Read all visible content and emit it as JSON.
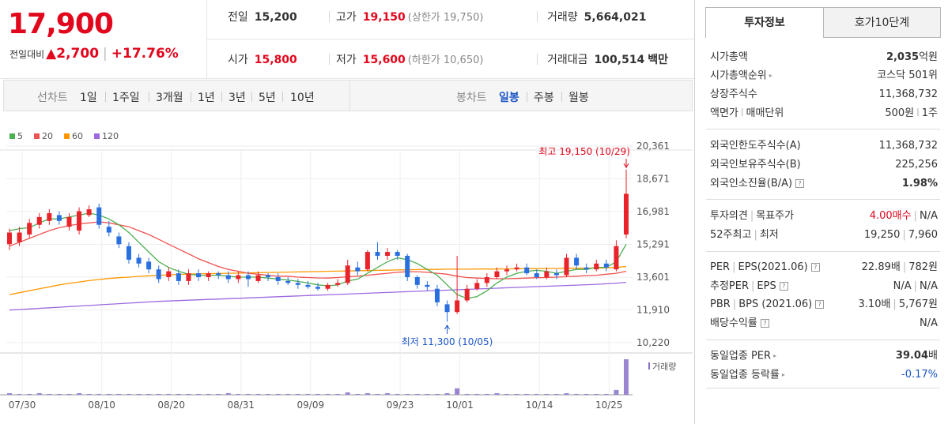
{
  "price": {
    "current": "17,900",
    "change_label": "전일대비",
    "change_arrow": "▲",
    "change_value": "2,700",
    "change_pct": "+17.76%"
  },
  "stats": {
    "prev_label": "전일",
    "prev_value": "15,200",
    "high_label": "고가",
    "high_value": "19,150",
    "high_sub": "(상한가 19,750)",
    "volume_label": "거래량",
    "volume_value": "5,664,021",
    "open_label": "시가",
    "open_value": "15,800",
    "low_label": "저가",
    "low_value": "15,600",
    "low_sub": "(하한가 10,650)",
    "amount_label": "거래대금",
    "amount_value": "100,514",
    "amount_unit": "백만"
  },
  "chart_bar": {
    "line_label": "선차트",
    "periods": [
      "1일",
      "1주일",
      "3개월",
      "1년",
      "3년",
      "5년",
      "10년"
    ],
    "candle_label": "봉차트",
    "candle_types": [
      "일봉",
      "주봉",
      "월봉"
    ],
    "active_candle": "일봉"
  },
  "chart_data": {
    "type": "candlestick",
    "ma_legend": [
      {
        "name": "5",
        "color": "#4caf50"
      },
      {
        "name": "20",
        "color": "#ef5350"
      },
      {
        "name": "60",
        "color": "#ff9800"
      },
      {
        "name": "120",
        "color": "#9c6ade"
      }
    ],
    "y_ticks": [
      "20,361",
      "18,671",
      "16,981",
      "15,291",
      "13,601",
      "11,910",
      "10,220"
    ],
    "y_range": [
      10220,
      20361
    ],
    "x_ticks": [
      "07/30",
      "08/10",
      "08/20",
      "08/31",
      "09/09",
      "09/23",
      "10/01",
      "10/14",
      "10/25"
    ],
    "high_annotation": "최고 19,150 (10/29)",
    "low_annotation": "최저 11,300 (10/05)",
    "volume_label": "거래량",
    "candles": [
      {
        "o": 15300,
        "c": 15900,
        "h": 16100,
        "l": 15000
      },
      {
        "o": 15400,
        "c": 15900,
        "h": 16200,
        "l": 15200
      },
      {
        "o": 15800,
        "c": 16400,
        "h": 16600,
        "l": 15600
      },
      {
        "o": 16300,
        "c": 16700,
        "h": 16900,
        "l": 16100
      },
      {
        "o": 16500,
        "c": 16900,
        "h": 17100,
        "l": 16300
      },
      {
        "o": 16800,
        "c": 16500,
        "h": 17000,
        "l": 16300
      },
      {
        "o": 16200,
        "c": 16700,
        "h": 16900,
        "l": 16000
      },
      {
        "o": 16000,
        "c": 17000,
        "h": 17200,
        "l": 15800
      },
      {
        "o": 16800,
        "c": 17100,
        "h": 17300,
        "l": 16700
      },
      {
        "o": 17200,
        "c": 16300,
        "h": 17400,
        "l": 16100
      },
      {
        "o": 16200,
        "c": 15900,
        "h": 16500,
        "l": 15700
      },
      {
        "o": 15700,
        "c": 15300,
        "h": 15900,
        "l": 15100
      },
      {
        "o": 15200,
        "c": 14500,
        "h": 15400,
        "l": 14300
      },
      {
        "o": 14600,
        "c": 14300,
        "h": 14800,
        "l": 14100
      },
      {
        "o": 14400,
        "c": 14000,
        "h": 14600,
        "l": 13800
      },
      {
        "o": 14000,
        "c": 13500,
        "h": 14200,
        "l": 13300
      },
      {
        "o": 13600,
        "c": 13900,
        "h": 14100,
        "l": 13400
      },
      {
        "o": 13800,
        "c": 13400,
        "h": 14000,
        "l": 13200
      },
      {
        "o": 13400,
        "c": 13800,
        "h": 14000,
        "l": 13200
      },
      {
        "o": 13800,
        "c": 13600,
        "h": 14000,
        "l": 13400
      },
      {
        "o": 13600,
        "c": 13800,
        "h": 13900,
        "l": 13400
      },
      {
        "o": 13800,
        "c": 13700,
        "h": 13900,
        "l": 13500
      },
      {
        "o": 13700,
        "c": 13500,
        "h": 13900,
        "l": 13300
      },
      {
        "o": 13500,
        "c": 13700,
        "h": 13900,
        "l": 13300
      },
      {
        "o": 13700,
        "c": 13500,
        "h": 13900,
        "l": 13100
      },
      {
        "o": 13400,
        "c": 13700,
        "h": 13900,
        "l": 13300
      },
      {
        "o": 13700,
        "c": 13600,
        "h": 13800,
        "l": 13400
      },
      {
        "o": 13600,
        "c": 13400,
        "h": 13800,
        "l": 13200
      },
      {
        "o": 13400,
        "c": 13300,
        "h": 13600,
        "l": 13200
      },
      {
        "o": 13300,
        "c": 13200,
        "h": 13500,
        "l": 13000
      },
      {
        "o": 13200,
        "c": 13100,
        "h": 13400,
        "l": 13000
      },
      {
        "o": 13100,
        "c": 13000,
        "h": 13300,
        "l": 12900
      },
      {
        "o": 13000,
        "c": 13200,
        "h": 13300,
        "l": 12900
      },
      {
        "o": 13200,
        "c": 13300,
        "h": 13500,
        "l": 13100
      },
      {
        "o": 13300,
        "c": 14200,
        "h": 14500,
        "l": 13200
      },
      {
        "o": 14100,
        "c": 13900,
        "h": 14400,
        "l": 13700
      },
      {
        "o": 14000,
        "c": 14900,
        "h": 15000,
        "l": 13900
      },
      {
        "o": 14900,
        "c": 14700,
        "h": 15400,
        "l": 14500
      },
      {
        "o": 14700,
        "c": 14900,
        "h": 15100,
        "l": 14500
      },
      {
        "o": 14900,
        "c": 14700,
        "h": 15000,
        "l": 14500
      },
      {
        "o": 14700,
        "c": 13600,
        "h": 14800,
        "l": 13400
      },
      {
        "o": 13600,
        "c": 13200,
        "h": 13700,
        "l": 13000
      },
      {
        "o": 13200,
        "c": 13100,
        "h": 13400,
        "l": 12900
      },
      {
        "o": 13000,
        "c": 12300,
        "h": 13200,
        "l": 12100
      },
      {
        "o": 12200,
        "c": 11800,
        "h": 12400,
        "l": 11300
      },
      {
        "o": 11800,
        "c": 12400,
        "h": 14700,
        "l": 11700
      },
      {
        "o": 12400,
        "c": 13000,
        "h": 13200,
        "l": 12300
      },
      {
        "o": 13000,
        "c": 13300,
        "h": 13500,
        "l": 12900
      },
      {
        "o": 13300,
        "c": 13600,
        "h": 13800,
        "l": 13100
      },
      {
        "o": 13600,
        "c": 13900,
        "h": 14100,
        "l": 13500
      },
      {
        "o": 13900,
        "c": 14000,
        "h": 14200,
        "l": 13700
      },
      {
        "o": 14000,
        "c": 14100,
        "h": 14300,
        "l": 13900
      },
      {
        "o": 14100,
        "c": 13800,
        "h": 14300,
        "l": 13700
      },
      {
        "o": 13800,
        "c": 13600,
        "h": 14000,
        "l": 13500
      },
      {
        "o": 13600,
        "c": 13900,
        "h": 14100,
        "l": 13500
      },
      {
        "o": 13800,
        "c": 13700,
        "h": 14000,
        "l": 13500
      },
      {
        "o": 13700,
        "c": 14600,
        "h": 14800,
        "l": 13600
      },
      {
        "o": 14600,
        "c": 14200,
        "h": 14800,
        "l": 14000
      },
      {
        "o": 14100,
        "c": 14000,
        "h": 14300,
        "l": 13800
      },
      {
        "o": 14000,
        "c": 14300,
        "h": 14500,
        "l": 13900
      },
      {
        "o": 14300,
        "c": 14100,
        "h": 14500,
        "l": 13900
      },
      {
        "o": 14000,
        "c": 15200,
        "h": 15500,
        "l": 13900
      },
      {
        "o": 15800,
        "c": 17900,
        "h": 19150,
        "l": 15600
      }
    ],
    "volumes": [
      2,
      1,
      1,
      2,
      1,
      1,
      1,
      2,
      1,
      1,
      1,
      1,
      1,
      1,
      1,
      1,
      1,
      1,
      1,
      1,
      1,
      1,
      2,
      1,
      1,
      1,
      1,
      1,
      1,
      1,
      1,
      1,
      1,
      1,
      3,
      1,
      2,
      1,
      2,
      1,
      1,
      1,
      1,
      1,
      2,
      8,
      1,
      1,
      1,
      2,
      1,
      1,
      1,
      1,
      1,
      1,
      2,
      1,
      1,
      1,
      1,
      6,
      44
    ],
    "ma5": [
      16000,
      16100,
      16150,
      16400,
      16600,
      16600,
      16700,
      16800,
      16900,
      16800,
      16600,
      16300,
      15900,
      15400,
      14900,
      14400,
      14100,
      13900,
      13750,
      13700,
      13700,
      13700,
      13650,
      13600,
      13600,
      13600,
      13550,
      13500,
      13450,
      13380,
      13300,
      13200,
      13150,
      13200,
      13400,
      13500,
      13800,
      14100,
      14400,
      14600,
      14500,
      14300,
      14000,
      13700,
      13200,
      12700,
      12500,
      12600,
      12900,
      13300,
      13600,
      13800,
      13900,
      13950,
      13900,
      13800,
      13900,
      14000,
      14000,
      14100,
      14100,
      14400,
      15300
    ],
    "ma20": [
      15200,
      15400,
      15600,
      15800,
      16000,
      16150,
      16250,
      16350,
      16400,
      16450,
      16400,
      16300,
      16200,
      16000,
      15800,
      15550,
      15300,
      15050,
      14800,
      14550,
      14350,
      14150,
      14000,
      13900,
      13800,
      13750,
      13700,
      13650,
      13650,
      13600,
      13580,
      13560,
      13550,
      13580,
      13620,
      13650,
      13700,
      13750,
      13800,
      13850,
      13880,
      13880,
      13850,
      13800,
      13750,
      13650,
      13580,
      13550,
      13530,
      13520,
      13520,
      13530,
      13550,
      13570,
      13580,
      13600,
      13620,
      13650,
      13680,
      13700,
      13750,
      13800,
      13900
    ],
    "ma60": [
      12700,
      12800,
      12900,
      13000,
      13100,
      13200,
      13280,
      13350,
      13420,
      13480,
      13530,
      13570,
      13600,
      13640,
      13670,
      13700,
      13720,
      13740,
      13760,
      13770,
      13780,
      13790,
      13800,
      13810,
      13820,
      13830,
      13840,
      13850,
      13860,
      13870,
      13880,
      13890,
      13900,
      13910,
      13920,
      13930,
      13940,
      13950,
      13960,
      13970,
      13980,
      13990,
      14000,
      14000,
      14010,
      14010,
      14010,
      14020,
      14020,
      14020,
      14030,
      14030,
      14040,
      14040,
      14050,
      14050,
      14060,
      14060,
      14070,
      14070,
      14080,
      14100,
      14150
    ],
    "ma120": [
      11900,
      11930,
      11960,
      11990,
      12020,
      12050,
      12080,
      12110,
      12140,
      12170,
      12200,
      12230,
      12260,
      12290,
      12320,
      12350,
      12370,
      12390,
      12410,
      12430,
      12450,
      12470,
      12490,
      12510,
      12530,
      12550,
      12570,
      12590,
      12610,
      12630,
      12650,
      12670,
      12690,
      12710,
      12730,
      12750,
      12770,
      12790,
      12810,
      12830,
      12850,
      12870,
      12890,
      12910,
      12930,
      12950,
      12970,
      12990,
      13010,
      13030,
      13050,
      13070,
      13090,
      13110,
      13130,
      13150,
      13170,
      13190,
      13210,
      13230,
      13260,
      13290,
      13330
    ]
  },
  "panel": {
    "tab_info": "투자정보",
    "tab_order": "호가10단계",
    "market_cap_label": "시가총액",
    "market_cap_value": "2,035",
    "market_cap_unit": "억원",
    "rank_label": "시가총액순위",
    "rank_value": "코스닥 501위",
    "shares_label": "상장주식수",
    "shares_value": "11,368,732",
    "par_label": "액면가",
    "par_sep": "l",
    "unit_label": "매매단위",
    "par_value": "500원",
    "unit_value": "1주",
    "foreign_limit_label": "외국인한도주식수(A)",
    "foreign_limit_value": "11,368,732",
    "foreign_hold_label": "외국인보유주식수(B)",
    "foreign_hold_value": "225,256",
    "foreign_rate_label": "외국인소진율(B/A)",
    "foreign_rate_value": "1.98%",
    "opinion_label": "투자의견",
    "target_label": "목표주가",
    "opinion_value": "4.00매수",
    "target_value": "N/A",
    "w52_label": "52주최고",
    "w52_low_label": "최저",
    "w52_high_value": "19,250",
    "w52_low_value": "7,960",
    "per_label": "PER",
    "eps_label": "EPS(2021.06)",
    "per_value": "22.89배",
    "eps_value": "782원",
    "est_per_label": "추정PER",
    "est_eps_label": "EPS",
    "est_per_value": "N/A",
    "est_eps_value": "N/A",
    "pbr_label": "PBR",
    "bps_label": "BPS (2021.06)",
    "pbr_value": "3.10배",
    "bps_value": "5,767원",
    "div_label": "배당수익률",
    "div_value": "N/A",
    "sector_per_label": "동일업종 PER",
    "sector_per_value": "39.04",
    "sector_per_unit": "배",
    "sector_chg_label": "동일업종 등락률",
    "sector_chg_value": "-0.17%"
  }
}
